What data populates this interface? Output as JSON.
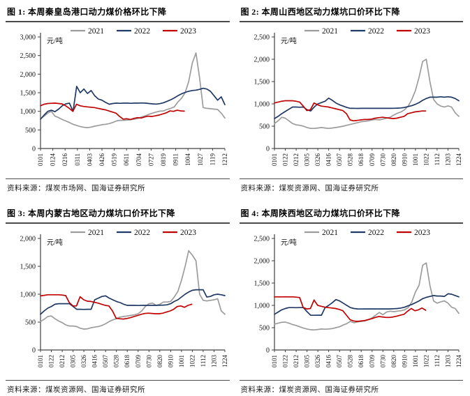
{
  "page": {
    "background": "#ffffff"
  },
  "colors": {
    "axis": "#404040",
    "text": "#111111",
    "rule": "#4a4a4a",
    "series_2021": "#9c9c9c",
    "series_2022": "#1f3864",
    "series_2023": "#c00000"
  },
  "legend": {
    "entries": [
      "2021",
      "2022",
      "2023"
    ],
    "position": "top"
  },
  "chart_data": [
    {
      "type": "line",
      "title": "图 1: 本周秦皇岛港口动力煤价格环比下降",
      "unit": "元/吨",
      "ylim": [
        0,
        3000
      ],
      "ystep": 500,
      "grid": false,
      "legend_position": "top",
      "categories": [
        "0101",
        "0124",
        "0216",
        "0311",
        "0403",
        "0426",
        "0519",
        "0611",
        "0704",
        "0727",
        "0819",
        "0911",
        "1004",
        "1027",
        "1119",
        "1212"
      ],
      "series": [
        {
          "name": "2021",
          "color": "#9c9c9c",
          "span": 1,
          "values": [
            800,
            870,
            950,
            1000,
            870,
            830,
            780,
            740,
            700,
            650,
            620,
            590,
            570,
            560,
            575,
            600,
            620,
            640,
            650,
            670,
            700,
            740,
            760,
            755,
            765,
            775,
            790,
            810,
            850,
            880,
            920,
            950,
            980,
            1005,
            1010,
            1050,
            1080,
            1120,
            1250,
            1350,
            1500,
            1800,
            2300,
            2570,
            1900,
            1100,
            1080,
            1070,
            1060,
            1050,
            950,
            820
          ]
        },
        {
          "name": "2022",
          "color": "#1f3864",
          "span": 1,
          "values": [
            790,
            900,
            1000,
            1030,
            990,
            1060,
            1150,
            1200,
            1220,
            1000,
            1670,
            1500,
            1600,
            1480,
            1560,
            1420,
            1330,
            1300,
            1240,
            1190,
            1210,
            1220,
            1215,
            1220,
            1220,
            1215,
            1220,
            1220,
            1225,
            1220,
            1210,
            1200,
            1195,
            1205,
            1230,
            1270,
            1310,
            1360,
            1420,
            1470,
            1510,
            1540,
            1560,
            1570,
            1590,
            1620,
            1600,
            1540,
            1420,
            1300,
            1390,
            1180
          ]
        },
        {
          "name": "2023",
          "color": "#c00000",
          "span": 0.78,
          "values": [
            1150,
            1190,
            1210,
            1215,
            1220,
            1210,
            1200,
            1150,
            1080,
            1000,
            1190,
            1150,
            1130,
            1120,
            1110,
            1100,
            1080,
            1060,
            1040,
            1010,
            980,
            950,
            860,
            790,
            800,
            780,
            810,
            830,
            820,
            850,
            870,
            860,
            880,
            900,
            930,
            960,
            1010,
            1000,
            1030,
            1010,
            1005
          ]
        }
      ],
      "source_prefix": "资料来源：",
      "source": "煤炭市场网、国海证券研究所"
    },
    {
      "type": "line",
      "title": "图 2: 本周山西地区动力煤坑口价环比下降",
      "unit": "元/吨",
      "ylim": [
        0,
        2500
      ],
      "ystep": 500,
      "grid": false,
      "legend_position": "top",
      "categories": [
        "0101",
        "0122",
        "0212",
        "0305",
        "0326",
        "0416",
        "0507",
        "0528",
        "0618",
        "0709",
        "0730",
        "0820",
        "0910",
        "1001",
        "1022",
        "1112",
        "1203",
        "1224"
      ],
      "series": [
        {
          "name": "2021",
          "color": "#9c9c9c",
          "span": 1,
          "values": [
            560,
            620,
            700,
            680,
            620,
            560,
            530,
            520,
            500,
            470,
            450,
            450,
            460,
            470,
            460,
            450,
            460,
            470,
            485,
            500,
            520,
            540,
            560,
            580,
            600,
            610,
            620,
            640,
            650,
            640,
            660,
            680,
            700,
            750,
            790,
            820,
            870,
            950,
            1100,
            1300,
            1600,
            1950,
            2000,
            1500,
            1100,
            1000,
            950,
            930,
            955,
            930,
            800,
            720
          ]
        },
        {
          "name": "2022",
          "color": "#1f3864",
          "span": 1,
          "values": [
            670,
            720,
            780,
            830,
            880,
            930,
            930,
            925,
            930,
            870,
            840,
            930,
            1000,
            1030,
            1060,
            1130,
            1080,
            1020,
            980,
            950,
            920,
            900,
            900,
            898,
            900,
            900,
            900,
            900,
            900,
            900,
            900,
            900,
            900,
            902,
            905,
            910,
            920,
            940,
            960,
            990,
            1030,
            1080,
            1120,
            1150,
            1150,
            1150,
            1160,
            1150,
            1160,
            1150,
            1120,
            1070
          ]
        },
        {
          "name": "2023",
          "color": "#c00000",
          "span": 0.82,
          "values": [
            1020,
            1040,
            1060,
            1070,
            1070,
            1070,
            1060,
            1040,
            950,
            850,
            870,
            1020,
            980,
            950,
            940,
            930,
            910,
            890,
            870,
            850,
            780,
            640,
            620,
            630,
            640,
            650,
            650,
            660,
            680,
            690,
            700,
            690,
            680,
            670,
            680,
            700,
            720,
            780,
            800,
            820,
            830,
            840,
            840
          ]
        }
      ],
      "source_prefix": "资料来源：",
      "source": "煤炭资源网、国海证券研究所"
    },
    {
      "type": "line",
      "title": "图 3: 本周内蒙古地区动力煤坑口价环比下降",
      "unit": "元/吨",
      "ylim": [
        0,
        2000
      ],
      "ystep": 500,
      "grid": false,
      "legend_position": "top",
      "categories": [
        "0101",
        "0122",
        "0212",
        "0305",
        "0326",
        "0416",
        "0507",
        "0528",
        "0618",
        "0709",
        "0730",
        "0820",
        "0910",
        "1001",
        "1022",
        "1112",
        "1203",
        "1224"
      ],
      "series": [
        {
          "name": "2021",
          "color": "#9c9c9c",
          "span": 1,
          "values": [
            510,
            550,
            600,
            610,
            560,
            520,
            490,
            450,
            430,
            430,
            420,
            390,
            375,
            380,
            400,
            410,
            420,
            440,
            470,
            510,
            540,
            560,
            590,
            600,
            610,
            620,
            630,
            650,
            700,
            780,
            830,
            840,
            800,
            820,
            860,
            860,
            870,
            950,
            1050,
            1250,
            1500,
            1780,
            1700,
            1600,
            1000,
            890,
            880,
            890,
            900,
            920,
            700,
            640
          ]
        },
        {
          "name": "2022",
          "color": "#1f3864",
          "span": 1,
          "values": [
            640,
            700,
            750,
            780,
            820,
            830,
            830,
            830,
            830,
            780,
            730,
            730,
            728,
            730,
            730,
            900,
            930,
            960,
            970,
            930,
            900,
            870,
            850,
            820,
            800,
            800,
            800,
            798,
            800,
            800,
            800,
            800,
            800,
            802,
            805,
            810,
            830,
            870,
            900,
            950,
            1000,
            1040,
            1070,
            1080,
            1080,
            1080,
            950,
            960,
            990,
            1000,
            990,
            975
          ]
        },
        {
          "name": "2023",
          "color": "#c00000",
          "span": 0.82,
          "values": [
            970,
            980,
            990,
            990,
            990,
            990,
            985,
            975,
            850,
            790,
            790,
            955,
            900,
            875,
            870,
            855,
            840,
            820,
            800,
            790,
            700,
            570,
            560,
            555,
            565,
            580,
            600,
            620,
            640,
            655,
            660,
            655,
            650,
            650,
            660,
            680,
            700,
            730,
            780,
            790,
            765,
            800,
            820
          ]
        }
      ],
      "source_prefix": "资料来源：",
      "source": "煤炭资源网、国海证券研究所"
    },
    {
      "type": "line",
      "title": "图 4: 本周陕西地区动力煤坑口价环比下降",
      "unit": "元/吨",
      "ylim": [
        0,
        2500
      ],
      "ystep": 500,
      "grid": false,
      "legend_position": "top",
      "categories": [
        "0101",
        "0122",
        "0212",
        "0305",
        "0326",
        "0416",
        "0507",
        "0528",
        "0618",
        "0709",
        "0730",
        "0820",
        "0910",
        "1001",
        "1022",
        "1112",
        "1203",
        "1224"
      ],
      "series": [
        {
          "name": "2021",
          "color": "#9c9c9c",
          "span": 1,
          "values": [
            580,
            600,
            620,
            625,
            600,
            570,
            550,
            520,
            490,
            470,
            455,
            450,
            460,
            470,
            465,
            470,
            480,
            500,
            520,
            560,
            590,
            640,
            610,
            630,
            640,
            650,
            680,
            720,
            780,
            840,
            790,
            850,
            870,
            860,
            870,
            880,
            900,
            950,
            1080,
            1300,
            1450,
            1900,
            1950,
            1450,
            1100,
            1050,
            1080,
            1100,
            1050,
            960,
            930,
            820
          ]
        },
        {
          "name": "2022",
          "color": "#1f3864",
          "span": 1,
          "values": [
            800,
            850,
            900,
            930,
            950,
            950,
            948,
            950,
            950,
            860,
            780,
            778,
            780,
            780,
            950,
            1000,
            1060,
            1130,
            1100,
            1050,
            1000,
            950,
            930,
            920,
            918,
            920,
            920,
            920,
            920,
            920,
            920,
            920,
            920,
            925,
            930,
            940,
            960,
            990,
            1020,
            1060,
            1100,
            1150,
            1180,
            1200,
            1220,
            1210,
            1210,
            1200,
            1260,
            1250,
            1220,
            1190
          ]
        },
        {
          "name": "2023",
          "color": "#c00000",
          "span": 0.82,
          "values": [
            1190,
            1190,
            1190,
            1192,
            1190,
            1190,
            1185,
            1175,
            950,
            920,
            930,
            1120,
            1000,
            980,
            960,
            950,
            940,
            930,
            910,
            880,
            780,
            680,
            650,
            640,
            650,
            660,
            680,
            700,
            730,
            750,
            740,
            730,
            730,
            740,
            760,
            780,
            800,
            870,
            930,
            880,
            900,
            940,
            890
          ]
        }
      ],
      "source_prefix": "资料来源：",
      "source": "煤炭资源网、国海证券研究所"
    }
  ]
}
